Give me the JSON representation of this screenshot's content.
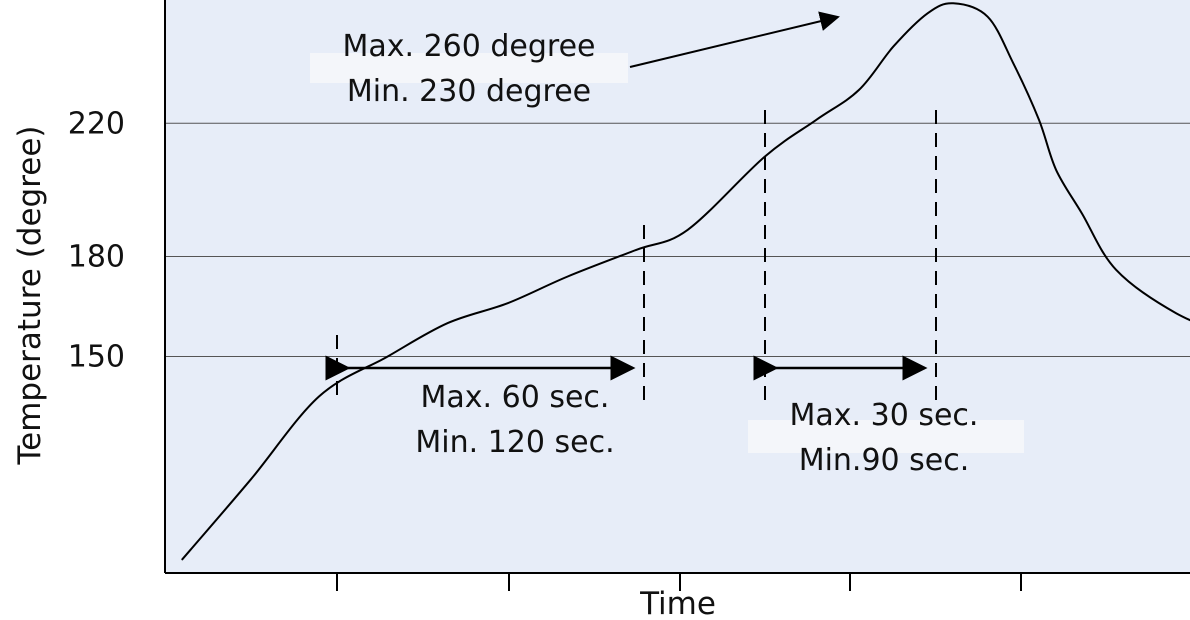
{
  "chart_data": {
    "type": "line",
    "title": "",
    "xlabel": "Time",
    "ylabel": "Temperature (degree)",
    "ylim": [
      85,
      257
    ],
    "y_ticks": [
      150,
      180,
      220
    ],
    "grid": true,
    "x_ticks_labeled": false,
    "series": [
      {
        "values_description": "reflow temperature profile",
        "x": [
          0.0,
          0.1,
          0.8,
          1.6,
          2.4,
          3.1,
          3.8,
          4.5,
          5.3,
          5.9,
          6.8,
          7.4,
          7.9,
          8.3,
          8.7,
          9.0,
          9.4,
          9.7,
          10.0,
          10.2,
          10.5,
          10.9,
          11.6,
          12.5
        ],
        "y": [
          89,
          92,
          113,
          138,
          150,
          160,
          166,
          174,
          182,
          188,
          210,
          221,
          230,
          243,
          253,
          256,
          252,
          238,
          221,
          206,
          193,
          176,
          163,
          153
        ]
      }
    ],
    "annotations": {
      "peak": [
        "Max. 260 degree",
        "Min. 230 degree"
      ],
      "preheat": [
        "Max. 60 sec.",
        "Min. 120 sec."
      ],
      "reflow": [
        "Max. 30 sec.",
        "Min.90 sec."
      ]
    },
    "colors": {
      "plot_background": "#e7edf8",
      "line": "#000000",
      "grid": "#000000",
      "annotation_box": "#f4f6fa"
    }
  }
}
